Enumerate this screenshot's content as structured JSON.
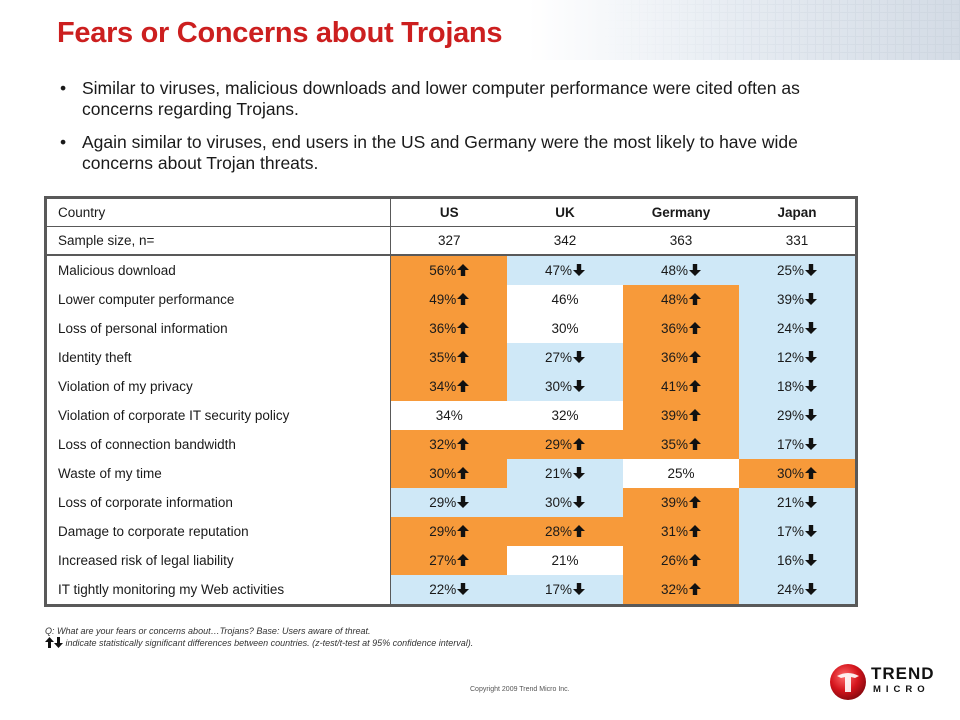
{
  "title": "Fears or Concerns about Trojans",
  "bullets": [
    "Similar to viruses, malicious downloads and lower computer performance were cited often as concerns regarding Trojans.",
    "Again similar to viruses, end users in the US and Germany were the most likely to have wide concerns about Trojan threats."
  ],
  "table": {
    "header_label": "Country",
    "columns": [
      "US",
      "UK",
      "Germany",
      "Japan"
    ],
    "sample_label": "Sample size, n=",
    "sample_values": [
      "327",
      "342",
      "363",
      "331"
    ],
    "rows": [
      {
        "label": "Malicious download",
        "cells": [
          {
            "v": "56%",
            "c": "orange",
            "a": "up"
          },
          {
            "v": "47%",
            "c": "blue",
            "a": "down"
          },
          {
            "v": "48%",
            "c": "blue",
            "a": "down"
          },
          {
            "v": "25%",
            "c": "blue",
            "a": "down"
          }
        ]
      },
      {
        "label": "Lower computer performance",
        "cells": [
          {
            "v": "49%",
            "c": "orange",
            "a": "up"
          },
          {
            "v": "46%",
            "c": "white",
            "a": ""
          },
          {
            "v": "48%",
            "c": "orange",
            "a": "up"
          },
          {
            "v": "39%",
            "c": "blue",
            "a": "down"
          }
        ]
      },
      {
        "label": "Loss of personal information",
        "cells": [
          {
            "v": "36%",
            "c": "orange",
            "a": "up"
          },
          {
            "v": "30%",
            "c": "white",
            "a": ""
          },
          {
            "v": "36%",
            "c": "orange",
            "a": "up"
          },
          {
            "v": "24%",
            "c": "blue",
            "a": "down"
          }
        ]
      },
      {
        "label": "Identity theft",
        "cells": [
          {
            "v": "35%",
            "c": "orange",
            "a": "up"
          },
          {
            "v": "27%",
            "c": "blue",
            "a": "down"
          },
          {
            "v": "36%",
            "c": "orange",
            "a": "up"
          },
          {
            "v": "12%",
            "c": "blue",
            "a": "down"
          }
        ]
      },
      {
        "label": "Violation of my privacy",
        "cells": [
          {
            "v": "34%",
            "c": "orange",
            "a": "up"
          },
          {
            "v": "30%",
            "c": "blue",
            "a": "down"
          },
          {
            "v": "41%",
            "c": "orange",
            "a": "up"
          },
          {
            "v": "18%",
            "c": "blue",
            "a": "down"
          }
        ]
      },
      {
        "label": "Violation of corporate IT security policy",
        "cells": [
          {
            "v": "34%",
            "c": "white",
            "a": ""
          },
          {
            "v": "32%",
            "c": "white",
            "a": ""
          },
          {
            "v": "39%",
            "c": "orange",
            "a": "up"
          },
          {
            "v": "29%",
            "c": "blue",
            "a": "down"
          }
        ]
      },
      {
        "label": "Loss of connection bandwidth",
        "cells": [
          {
            "v": "32%",
            "c": "orange",
            "a": "up"
          },
          {
            "v": "29%",
            "c": "orange",
            "a": "up"
          },
          {
            "v": "35%",
            "c": "orange",
            "a": "up"
          },
          {
            "v": "17%",
            "c": "blue",
            "a": "down"
          }
        ]
      },
      {
        "label": "Waste of my time",
        "cells": [
          {
            "v": "30%",
            "c": "orange",
            "a": "up"
          },
          {
            "v": "21%",
            "c": "blue",
            "a": "down"
          },
          {
            "v": "25%",
            "c": "white",
            "a": ""
          },
          {
            "v": "30%",
            "c": "orange",
            "a": "up"
          }
        ]
      },
      {
        "label": "Loss of corporate information",
        "cells": [
          {
            "v": "29%",
            "c": "blue",
            "a": "down"
          },
          {
            "v": "30%",
            "c": "blue",
            "a": "down"
          },
          {
            "v": "39%",
            "c": "orange",
            "a": "up"
          },
          {
            "v": "21%",
            "c": "blue",
            "a": "down"
          }
        ]
      },
      {
        "label": "Damage to corporate reputation",
        "cells": [
          {
            "v": "29%",
            "c": "orange",
            "a": "up"
          },
          {
            "v": "28%",
            "c": "orange",
            "a": "up"
          },
          {
            "v": "31%",
            "c": "orange",
            "a": "up"
          },
          {
            "v": "17%",
            "c": "blue",
            "a": "down"
          }
        ]
      },
      {
        "label": "Increased risk of legal liability",
        "cells": [
          {
            "v": "27%",
            "c": "orange",
            "a": "up"
          },
          {
            "v": "21%",
            "c": "white",
            "a": ""
          },
          {
            "v": "26%",
            "c": "orange",
            "a": "up"
          },
          {
            "v": "16%",
            "c": "blue",
            "a": "down"
          }
        ]
      },
      {
        "label": "IT tightly monitoring my Web activities",
        "cells": [
          {
            "v": "22%",
            "c": "blue",
            "a": "down"
          },
          {
            "v": "17%",
            "c": "blue",
            "a": "down"
          },
          {
            "v": "32%",
            "c": "orange",
            "a": "up"
          },
          {
            "v": "24%",
            "c": "blue",
            "a": "down"
          }
        ]
      }
    ]
  },
  "footnote": {
    "question": "Q: What are your fears or concerns about…Trojans? Base: Users aware of threat.",
    "legend": "indicate statistically significant differences between countries. (z-test/t-test at 95% confidence interval)."
  },
  "copyright": "Copyright 2009   Trend Micro Inc.",
  "logo": {
    "line1": "TREND",
    "line2": "MICRO"
  },
  "colors": {
    "title": "#cc1f1f",
    "above": "#f79a3a",
    "below": "#cfe8f7",
    "neutral": "#ffffff"
  }
}
